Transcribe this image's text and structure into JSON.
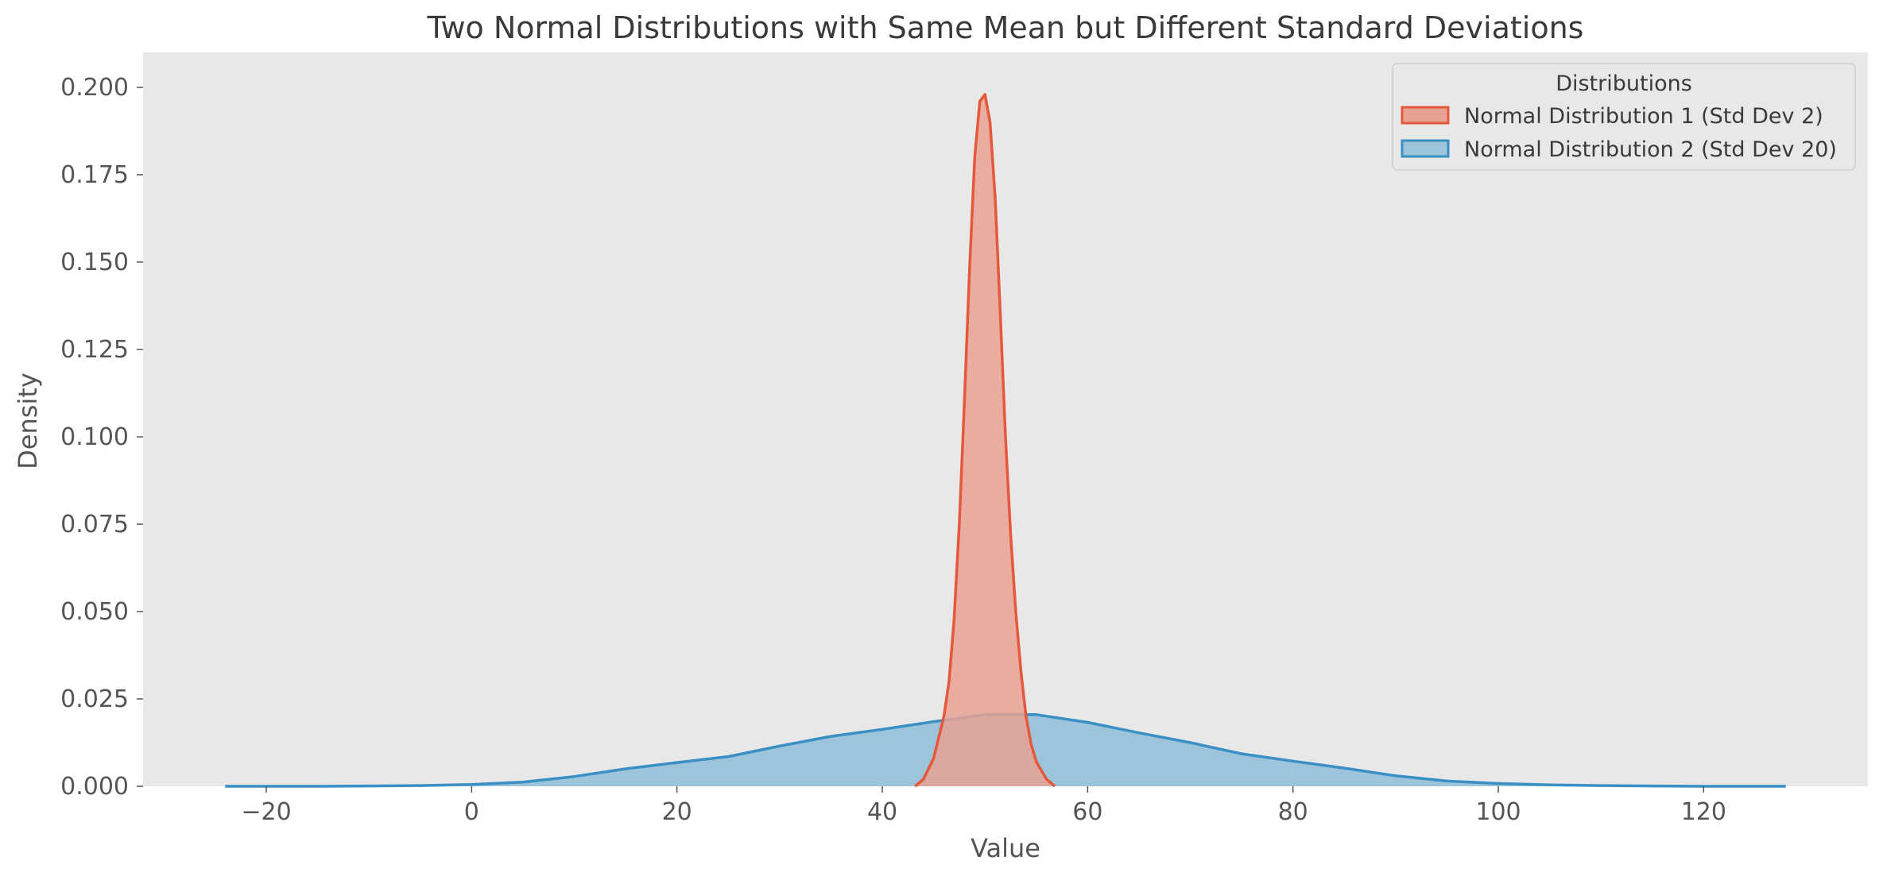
{
  "chart_data": {
    "type": "area",
    "title": "Two Normal Distributions with Same Mean but Different Standard Deviations",
    "xlabel": "Value",
    "ylabel": "Density",
    "xlim": [
      -32,
      136
    ],
    "ylim": [
      0,
      0.21
    ],
    "x_ticks": [
      -20,
      0,
      20,
      40,
      60,
      80,
      100,
      120
    ],
    "x_tick_labels": [
      "−20",
      "0",
      "20",
      "40",
      "60",
      "80",
      "100",
      "120"
    ],
    "y_ticks": [
      0.0,
      0.025,
      0.05,
      0.075,
      0.1,
      0.125,
      0.15,
      0.175,
      0.2
    ],
    "y_tick_labels": [
      "0.000",
      "0.025",
      "0.050",
      "0.075",
      "0.100",
      "0.125",
      "0.150",
      "0.175",
      "0.200"
    ],
    "grid": false,
    "background": "#e8e8e8",
    "legend": {
      "title": "Distributions",
      "placement": "top-right"
    },
    "series": [
      {
        "name": "Normal Distribution 1 (Std Dev 2)",
        "color": "#e5583b",
        "fill": "#e8a293",
        "x": [
          43.2,
          44,
          45,
          46,
          46.5,
          47,
          47.5,
          48,
          48.5,
          49,
          49.5,
          50,
          50.5,
          51,
          51.5,
          52,
          52.5,
          53,
          53.5,
          54,
          54.5,
          55,
          56,
          56.8
        ],
        "y": [
          0.0,
          0.002,
          0.008,
          0.02,
          0.03,
          0.048,
          0.075,
          0.11,
          0.148,
          0.18,
          0.196,
          0.198,
          0.19,
          0.168,
          0.135,
          0.1,
          0.072,
          0.05,
          0.033,
          0.02,
          0.012,
          0.007,
          0.002,
          0.0
        ]
      },
      {
        "name": "Normal Distribution 2 (Std Dev 20)",
        "color": "#3a8fc4",
        "fill": "#9cc4da",
        "x": [
          -24,
          -20,
          -15,
          -10,
          -5,
          0,
          5,
          10,
          15,
          20,
          25,
          30,
          35,
          40,
          45,
          50,
          55,
          60,
          65,
          70,
          75,
          80,
          85,
          90,
          95,
          100,
          105,
          110,
          115,
          120,
          124,
          128
        ],
        "y": [
          0.0,
          0.0,
          0.0,
          0.0001,
          0.0002,
          0.0005,
          0.0012,
          0.0028,
          0.005,
          0.0068,
          0.0085,
          0.0115,
          0.0143,
          0.0163,
          0.0185,
          0.0205,
          0.0205,
          0.0183,
          0.0153,
          0.0125,
          0.0093,
          0.0072,
          0.0052,
          0.003,
          0.0015,
          0.0008,
          0.0004,
          0.0002,
          0.0001,
          0.0,
          0.0,
          0.0
        ]
      }
    ]
  }
}
